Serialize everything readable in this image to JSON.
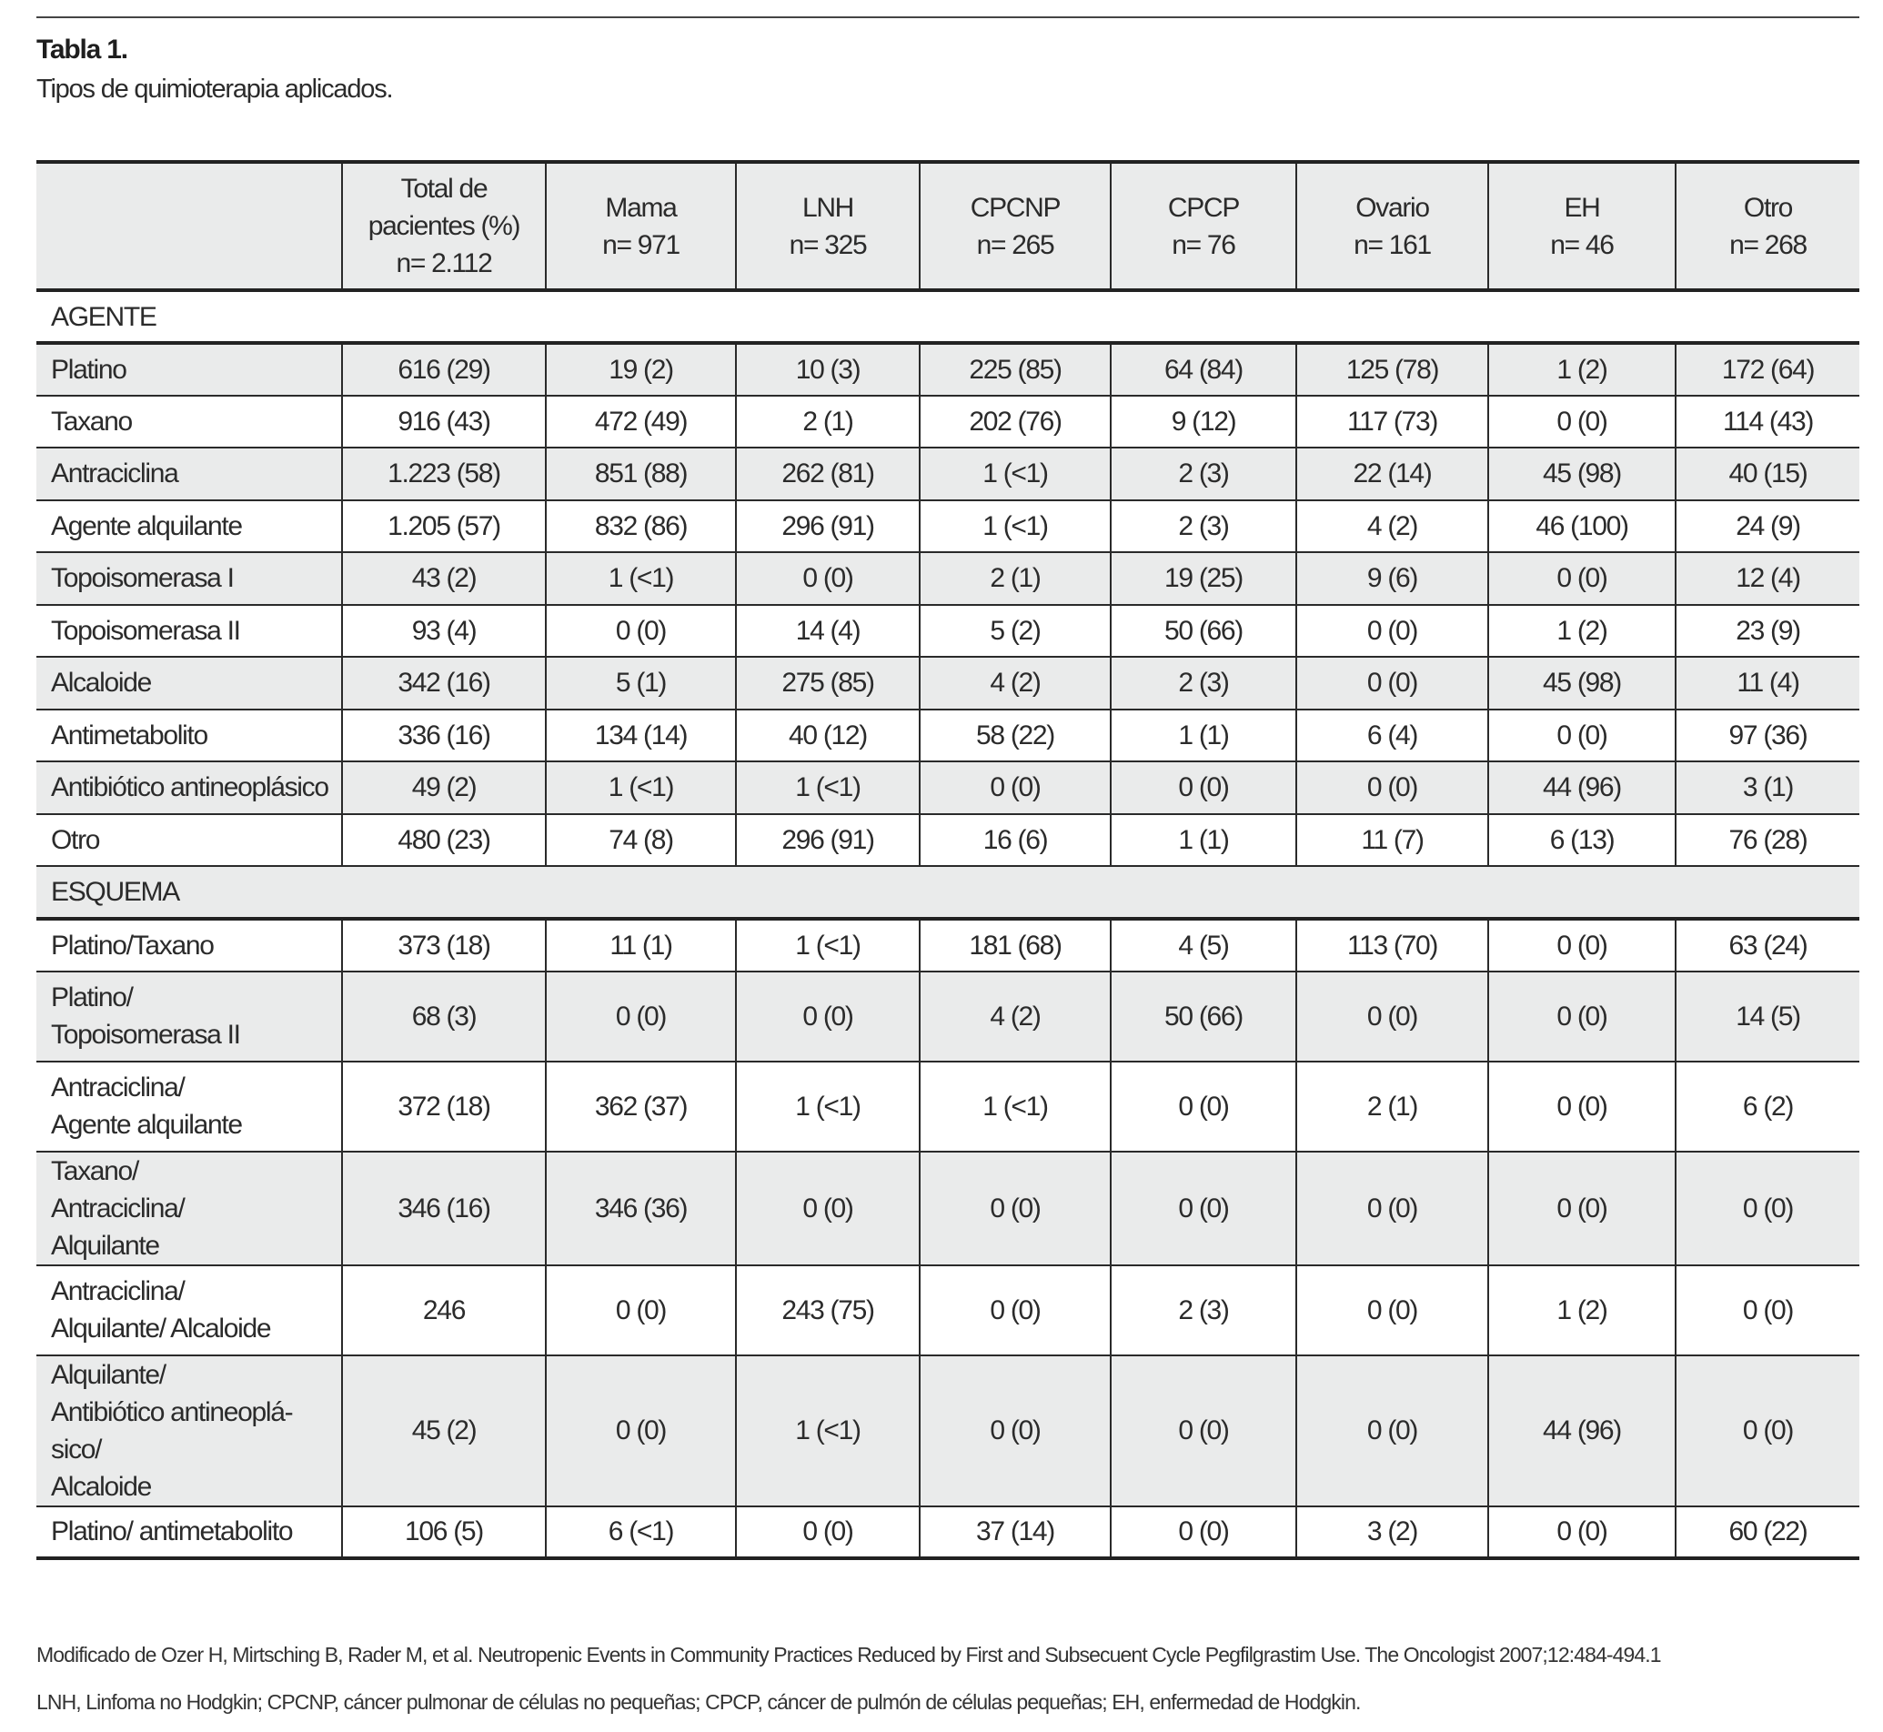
{
  "title": "Tabla 1.",
  "subtitle": "Tipos de quimioterapia aplicados.",
  "table": {
    "headers": [
      "",
      "Total de\npacientes (%)\nn= 2.112",
      "Mama\nn= 971",
      "LNH\nn= 325",
      "CPCNP\nn= 265",
      "CPCP\nn= 76",
      "Ovario\nn= 161",
      "EH\nn= 46",
      "Otro\nn= 268"
    ],
    "sections": [
      {
        "label": "AGENTE",
        "rows": [
          {
            "label": "Platino",
            "values": [
              "616 (29)",
              "19 (2)",
              "10 (3)",
              "225 (85)",
              "64 (84)",
              "125 (78)",
              "1 (2)",
              "172 (64)"
            ]
          },
          {
            "label": "Taxano",
            "values": [
              "916 (43)",
              "472 (49)",
              "2 (1)",
              "202 (76)",
              "9 (12)",
              "117 (73)",
              "0 (0)",
              "114 (43)"
            ]
          },
          {
            "label": "Antraciclina",
            "values": [
              "1.223 (58)",
              "851 (88)",
              "262 (81)",
              "1 (<1)",
              "2 (3)",
              "22 (14)",
              "45 (98)",
              "40 (15)"
            ]
          },
          {
            "label": "Agente alquilante",
            "values": [
              "1.205 (57)",
              "832 (86)",
              "296 (91)",
              "1 (<1)",
              "2 (3)",
              "4 (2)",
              "46 (100)",
              "24 (9)"
            ]
          },
          {
            "label": "Topoisomerasa I",
            "values": [
              "43 (2)",
              "1 (<1)",
              "0 (0)",
              "2 (1)",
              "19 (25)",
              "9 (6)",
              "0 (0)",
              "12 (4)"
            ]
          },
          {
            "label": "Topoisomerasa II",
            "values": [
              "93 (4)",
              "0 (0)",
              "14 (4)",
              "5 (2)",
              "50 (66)",
              "0 (0)",
              "1 (2)",
              "23 (9)"
            ]
          },
          {
            "label": "Alcaloide",
            "values": [
              "342 (16)",
              "5 (1)",
              "275 (85)",
              "4 (2)",
              "2 (3)",
              "0 (0)",
              "45 (98)",
              "11 (4)"
            ]
          },
          {
            "label": "Antimetabolito",
            "values": [
              "336 (16)",
              "134 (14)",
              "40 (12)",
              "58 (22)",
              "1 (1)",
              "6 (4)",
              "0 (0)",
              "97 (36)"
            ]
          },
          {
            "label": "Antibiótico antineoplásico",
            "values": [
              "49 (2)",
              "1 (<1)",
              "1 (<1)",
              "0 (0)",
              "0 (0)",
              "0 (0)",
              "44 (96)",
              "3 (1)"
            ]
          },
          {
            "label": "Otro",
            "values": [
              "480 (23)",
              "74 (8)",
              "296 (91)",
              "16 (6)",
              "1 (1)",
              "11 (7)",
              "6 (13)",
              "76 (28)"
            ]
          }
        ]
      },
      {
        "label": "ESQUEMA",
        "rows": [
          {
            "label": "Platino/Taxano",
            "values": [
              "373 (18)",
              "11 (1)",
              "1 (<1)",
              "181 (68)",
              "4 (5)",
              "113 (70)",
              "0 (0)",
              "63 (24)"
            ]
          },
          {
            "label": "Platino/\nTopoisomerasa II",
            "values": [
              "68 (3)",
              "0 (0)",
              "0 (0)",
              "4 (2)",
              "50 (66)",
              "0 (0)",
              "0 (0)",
              "14 (5)"
            ]
          },
          {
            "label": "Antraciclina/\nAgente alquilante",
            "values": [
              "372 (18)",
              "362 (37)",
              "1 (<1)",
              "1 (<1)",
              "0 (0)",
              "2 (1)",
              "0 (0)",
              "6 (2)"
            ]
          },
          {
            "label": "Taxano/\nAntraciclina/\nAlquilante",
            "values": [
              "346 (16)",
              "346 (36)",
              "0 (0)",
              "0 (0)",
              "0 (0)",
              "0 (0)",
              "0 (0)",
              "0 (0)"
            ]
          },
          {
            "label": "Antraciclina/\nAlquilante/ Alcaloide",
            "values": [
              "246",
              "0 (0)",
              "243 (75)",
              "0 (0)",
              "2 (3)",
              "0 (0)",
              "1 (2)",
              "0 (0)"
            ]
          },
          {
            "label": "Alquilante/\nAntibiótico antineoplá-\nsico/\nAlcaloide",
            "values": [
              "45 (2)",
              "0 (0)",
              "1 (<1)",
              "0 (0)",
              "0 (0)",
              "0 (0)",
              "44 (96)",
              "0 (0)"
            ]
          },
          {
            "label": "Platino/ antimetabolito",
            "values": [
              "106 (5)",
              "6 (<1)",
              "0 (0)",
              "37 (14)",
              "0 (0)",
              "3 (2)",
              "0 (0)",
              "60 (22)"
            ]
          }
        ]
      }
    ]
  },
  "footnotes": [
    "Modificado de Ozer H, Mirtsching B, Rader M, et al. Neutropenic Events in Community Practices Reduced by First and Subsecuent Cycle Pegfilgrastim Use. The Oncologist 2007;12:484-494.1",
    "LNH, Linfoma no Hodgkin; CPCNP, cáncer pulmonar de células no pequeñas; CPCP, cáncer de pulmón de células pequeñas; EH, enfermedad de Hodgkin."
  ],
  "colors": {
    "shade": "#eaebeb",
    "rule": "#222222",
    "text": "#2b2b2b"
  }
}
